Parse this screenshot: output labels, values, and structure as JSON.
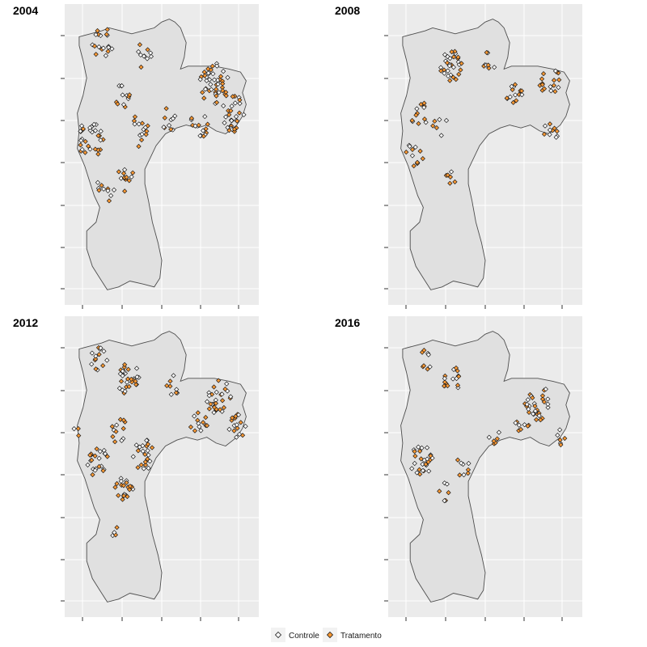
{
  "chart_data": [
    {
      "type": "scatter",
      "title": "2004",
      "clusters": [
        {
          "cx": 0.18,
          "cy": 0.12,
          "n": 18,
          "spread": 0.06
        },
        {
          "cx": 0.4,
          "cy": 0.16,
          "n": 10,
          "spread": 0.05
        },
        {
          "cx": 0.3,
          "cy": 0.3,
          "n": 12,
          "spread": 0.05
        },
        {
          "cx": 0.12,
          "cy": 0.45,
          "n": 30,
          "spread": 0.07
        },
        {
          "cx": 0.38,
          "cy": 0.42,
          "n": 14,
          "spread": 0.06
        },
        {
          "cx": 0.55,
          "cy": 0.38,
          "n": 10,
          "spread": 0.05
        },
        {
          "cx": 0.3,
          "cy": 0.58,
          "n": 12,
          "spread": 0.05
        },
        {
          "cx": 0.78,
          "cy": 0.26,
          "n": 45,
          "spread": 0.08
        },
        {
          "cx": 0.88,
          "cy": 0.36,
          "n": 30,
          "spread": 0.07
        },
        {
          "cx": 0.7,
          "cy": 0.4,
          "n": 14,
          "spread": 0.05
        },
        {
          "cx": 0.2,
          "cy": 0.62,
          "n": 10,
          "spread": 0.05
        }
      ]
    },
    {
      "type": "scatter",
      "title": "2008",
      "clusters": [
        {
          "cx": 0.32,
          "cy": 0.2,
          "n": 30,
          "spread": 0.06
        },
        {
          "cx": 0.52,
          "cy": 0.18,
          "n": 8,
          "spread": 0.04
        },
        {
          "cx": 0.15,
          "cy": 0.36,
          "n": 12,
          "spread": 0.05
        },
        {
          "cx": 0.26,
          "cy": 0.4,
          "n": 6,
          "spread": 0.04
        },
        {
          "cx": 0.12,
          "cy": 0.5,
          "n": 12,
          "spread": 0.05
        },
        {
          "cx": 0.32,
          "cy": 0.58,
          "n": 6,
          "spread": 0.03
        },
        {
          "cx": 0.65,
          "cy": 0.3,
          "n": 14,
          "spread": 0.05
        },
        {
          "cx": 0.85,
          "cy": 0.26,
          "n": 18,
          "spread": 0.06
        },
        {
          "cx": 0.85,
          "cy": 0.42,
          "n": 10,
          "spread": 0.04
        }
      ]
    },
    {
      "type": "scatter",
      "title": "2012",
      "clusters": [
        {
          "cx": 0.16,
          "cy": 0.14,
          "n": 14,
          "spread": 0.05
        },
        {
          "cx": 0.32,
          "cy": 0.2,
          "n": 28,
          "spread": 0.06
        },
        {
          "cx": 0.56,
          "cy": 0.22,
          "n": 8,
          "spread": 0.04
        },
        {
          "cx": 0.8,
          "cy": 0.26,
          "n": 28,
          "spread": 0.07
        },
        {
          "cx": 0.9,
          "cy": 0.36,
          "n": 16,
          "spread": 0.05
        },
        {
          "cx": 0.7,
          "cy": 0.36,
          "n": 12,
          "spread": 0.05
        },
        {
          "cx": 0.28,
          "cy": 0.38,
          "n": 12,
          "spread": 0.05
        },
        {
          "cx": 0.16,
          "cy": 0.48,
          "n": 22,
          "spread": 0.06
        },
        {
          "cx": 0.4,
          "cy": 0.46,
          "n": 22,
          "spread": 0.06
        },
        {
          "cx": 0.3,
          "cy": 0.58,
          "n": 20,
          "spread": 0.05
        },
        {
          "cx": 0.26,
          "cy": 0.72,
          "n": 4,
          "spread": 0.03
        },
        {
          "cx": 0.05,
          "cy": 0.38,
          "n": 3,
          "spread": 0.02
        }
      ]
    },
    {
      "type": "scatter",
      "title": "2016",
      "clusters": [
        {
          "cx": 0.18,
          "cy": 0.14,
          "n": 8,
          "spread": 0.04
        },
        {
          "cx": 0.32,
          "cy": 0.2,
          "n": 16,
          "spread": 0.05
        },
        {
          "cx": 0.16,
          "cy": 0.48,
          "n": 26,
          "spread": 0.06
        },
        {
          "cx": 0.38,
          "cy": 0.5,
          "n": 8,
          "spread": 0.04
        },
        {
          "cx": 0.28,
          "cy": 0.58,
          "n": 6,
          "spread": 0.04
        },
        {
          "cx": 0.55,
          "cy": 0.4,
          "n": 6,
          "spread": 0.03
        },
        {
          "cx": 0.78,
          "cy": 0.28,
          "n": 30,
          "spread": 0.07
        },
        {
          "cx": 0.7,
          "cy": 0.36,
          "n": 8,
          "spread": 0.04
        },
        {
          "cx": 0.9,
          "cy": 0.4,
          "n": 6,
          "spread": 0.03
        }
      ]
    }
  ],
  "legend": [
    {
      "label": "Controle",
      "color": "#ffffff"
    },
    {
      "label": "Tratamento",
      "color": "#ff9a33"
    }
  ],
  "colors": {
    "panel_bg": "#ebebeb",
    "grid": "#ffffff",
    "map_fill": "#e0e0e0",
    "map_stroke": "#4d4d4d",
    "point_stroke": "#1a1a1a"
  }
}
